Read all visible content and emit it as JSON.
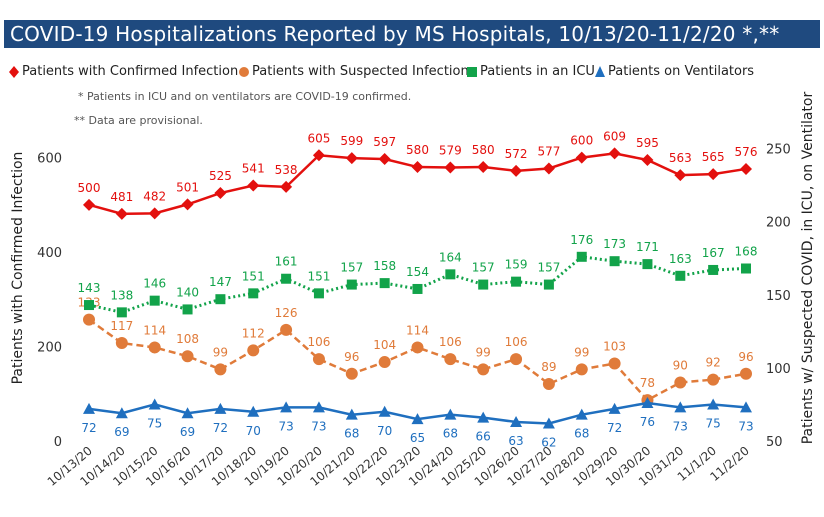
{
  "title": "COVID-19 Hospitalizations Reported by MS Hospitals, 10/13/20-11/2/20 *,**",
  "legend": [
    {
      "label": "Patients with Confirmed Infection",
      "color": "#e3100e",
      "marker": "diamond"
    },
    {
      "label": "Patients with Suspected Infection",
      "color": "#e07b3a",
      "marker": "circle"
    },
    {
      "label": "Patients in an ICU",
      "color": "#12a34a",
      "marker": "square"
    },
    {
      "label": "Patients on Ventilators",
      "color": "#1f6fbf",
      "marker": "triangle"
    }
  ],
  "notes": [
    "* Patients in ICU and on ventilators are COVID-19 confirmed.",
    "** Data are provisional."
  ],
  "chart_data": {
    "type": "line",
    "categories": [
      "10/13/20",
      "10/14/20",
      "10/15/20",
      "10/16/20",
      "10/17/20",
      "10/18/20",
      "10/19/20",
      "10/20/20",
      "10/21/20",
      "10/22/20",
      "10/23/20",
      "10/24/20",
      "10/25/20",
      "10/26/20",
      "10/27/20",
      "10/28/20",
      "10/29/20",
      "10/30/20",
      "10/31/20",
      "11/1/20",
      "11/2/20"
    ],
    "ylabel": "Patients with Confirmed Infection",
    "y2label": "Patients w/ Suspected COVID, in ICU, on Ventilator",
    "ylim": [
      0,
      650
    ],
    "y2lim": [
      50,
      260
    ],
    "yticks": [
      0,
      200,
      400,
      600
    ],
    "y2ticks": [
      50,
      100,
      150,
      200,
      250
    ],
    "grid": false,
    "legend_position": "top",
    "series": [
      {
        "name": "Patients with Confirmed Infection",
        "axis": "left",
        "color": "#e3100e",
        "marker": "diamond",
        "line": "solid",
        "values": [
          500,
          481,
          482,
          501,
          525,
          541,
          538,
          605,
          599,
          597,
          580,
          579,
          580,
          572,
          577,
          600,
          609,
          595,
          563,
          565,
          576
        ]
      },
      {
        "name": "Patients with Suspected Infection",
        "axis": "right",
        "color": "#e07b3a",
        "marker": "circle",
        "line": "dashed",
        "values": [
          133,
          117,
          114,
          108,
          99,
          112,
          126,
          106,
          96,
          104,
          114,
          106,
          99,
          106,
          89,
          99,
          103,
          78,
          90,
          92,
          96
        ]
      },
      {
        "name": "Patients in an ICU",
        "axis": "right",
        "color": "#12a34a",
        "marker": "square",
        "line": "dotted",
        "values": [
          143,
          138,
          146,
          140,
          147,
          151,
          161,
          151,
          157,
          158,
          154,
          164,
          157,
          159,
          157,
          176,
          173,
          171,
          163,
          167,
          168
        ]
      },
      {
        "name": "Patients on Ventilators",
        "axis": "right",
        "color": "#1f6fbf",
        "marker": "triangle",
        "line": "solid",
        "values": [
          72,
          69,
          75,
          69,
          72,
          70,
          73,
          73,
          68,
          70,
          65,
          68,
          66,
          63,
          62,
          68,
          72,
          76,
          73,
          75,
          73
        ]
      }
    ]
  }
}
